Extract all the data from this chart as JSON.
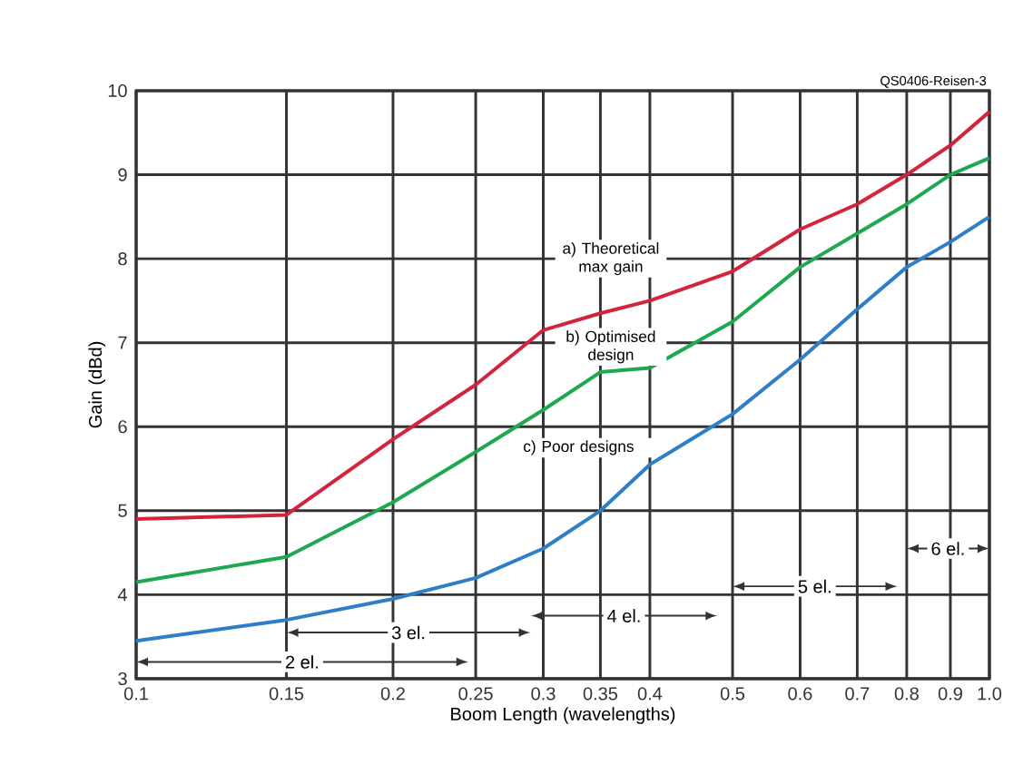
{
  "chart_data": {
    "type": "line",
    "xlabel": "Boom Length (wavelengths)",
    "ylabel": "Gain (dBd)",
    "x": [
      0.1,
      0.15,
      0.2,
      0.25,
      0.3,
      0.35,
      0.4,
      0.5,
      0.6,
      0.7,
      0.8,
      0.9,
      1.0
    ],
    "series": [
      {
        "color": "#d4243b",
        "values": [
          4.9,
          4.95,
          5.85,
          6.5,
          7.15,
          7.35,
          7.5,
          7.85,
          8.35,
          8.65,
          9.0,
          9.35,
          9.75
        ]
      },
      {
        "color": "#1fa84f",
        "values": [
          4.15,
          4.45,
          5.1,
          5.7,
          6.2,
          6.65,
          6.7,
          7.25,
          7.9,
          8.3,
          8.65,
          9.0,
          9.2
        ]
      },
      {
        "color": "#2f7fc8",
        "values": [
          3.45,
          3.7,
          3.95,
          4.2,
          4.55,
          5.0,
          5.55,
          6.15,
          6.8,
          7.4,
          7.9,
          8.2,
          8.5
        ]
      }
    ],
    "xlim": [
      0.1,
      1.0
    ],
    "xticks": [
      0.1,
      0.15,
      0.2,
      0.25,
      0.3,
      0.35,
      0.4,
      0.5,
      0.6,
      0.7,
      0.8,
      0.9,
      {
        "value": 1.0,
        "label": "1.0"
      }
    ],
    "ylim": [
      3,
      10
    ],
    "yticks": [
      3,
      4,
      5,
      6,
      7,
      8,
      9,
      10
    ],
    "log": "x",
    "grid": true,
    "marker": "none",
    "line_style": "solid",
    "annotations": [
      "a) Theoretical\nmax gain",
      "b) Optimised\ndesign",
      "c) Poor designs",
      "2 el.",
      "3 el.",
      "4 el.",
      "5 el.",
      "6 el.",
      "QS0406-Reisen-3"
    ]
  }
}
